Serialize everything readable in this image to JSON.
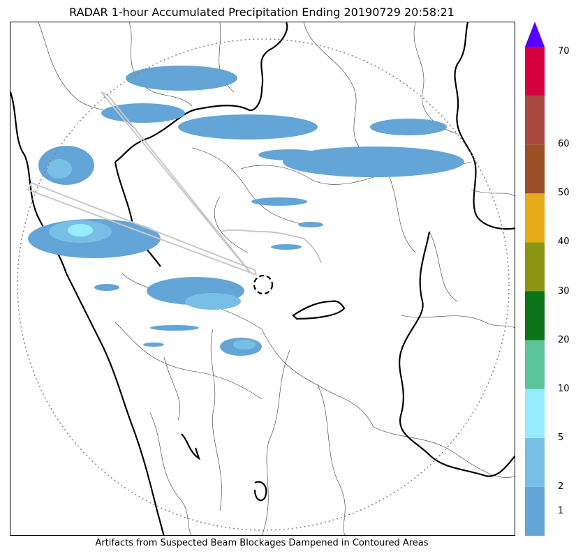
{
  "title": "RADAR 1-hour Accumulated Precipitation Ending 20190729 20:58:21",
  "footer": "Artifacts from Suspected Beam Blockages Dampened in Contoured Areas",
  "colorbar": {
    "labels": [
      "1",
      "2",
      "5",
      "10",
      "20",
      "30",
      "40",
      "50",
      "60",
      "70"
    ],
    "colors": [
      "#64a5d8",
      "#78bfe5",
      "#96ecfd",
      "#5dc49a",
      "#0c7319",
      "#8c9414",
      "#e7aa1b",
      "#9b4f27",
      "#a9493f",
      "#d7003f"
    ],
    "extend_color": "#5500ff"
  },
  "legend_colors": {
    "light_rain": "#64a5d8",
    "moderate_rain": "#78bfe5",
    "heavy_rain": "#96ecfd",
    "border_state": "#000000",
    "border_district": "#333333",
    "blockage": "#c8c8c8",
    "range_ring": "#808080"
  }
}
